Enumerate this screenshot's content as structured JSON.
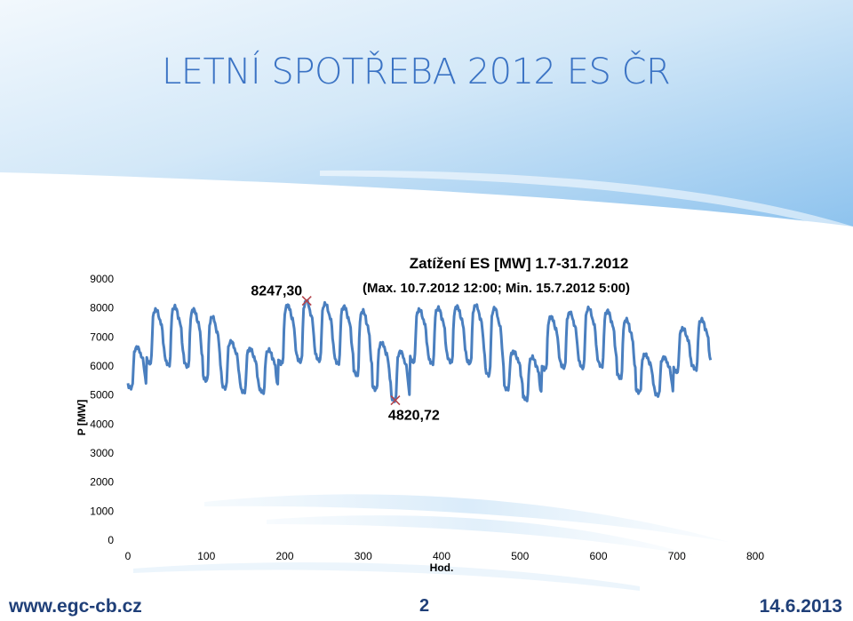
{
  "slide": {
    "title": "LETNÍ SPOTŘEBA 2012 ES ČR",
    "footer_left": "www.egc-cb.cz",
    "page_number": "2",
    "footer_right": "14.6.2013",
    "colors": {
      "header_gradient_start": "#e8f3fc",
      "header_gradient_end": "#8fc4ee",
      "title": "#3b73c4",
      "footer": "#1f3f78",
      "line": "#4a7fbf",
      "marker": "#b5434a"
    }
  },
  "chart_data": {
    "type": "line",
    "title": "Zatížení ES [MW] 1.7-31.7.2012",
    "subtitle": "(Max. 10.7.2012 12:00; Min. 15.7.2012 5:00)",
    "xlabel": "Hod.",
    "ylabel": "P [MW]",
    "xlim": [
      0,
      800
    ],
    "ylim": [
      0,
      9000
    ],
    "x_ticks": [
      0,
      100,
      200,
      300,
      400,
      500,
      600,
      700,
      800
    ],
    "y_ticks": [
      0,
      1000,
      2000,
      3000,
      4000,
      5000,
      6000,
      7000,
      8000,
      9000
    ],
    "grid": false,
    "legend": "none",
    "annotations": [
      {
        "label": "8247,30",
        "x": 228,
        "y": 8247.3
      },
      {
        "label": "4820,72",
        "x": 341,
        "y": 4820.72
      }
    ],
    "daily_profile": {
      "start_weekday": "Sunday",
      "hours": 744,
      "days": [
        {
          "min": 5250,
          "max": 6650
        },
        {
          "min": 6100,
          "max": 7950
        },
        {
          "min": 6050,
          "max": 8050
        },
        {
          "min": 6000,
          "max": 7950
        },
        {
          "min": 5500,
          "max": 7700
        },
        {
          "min": 5250,
          "max": 6850
        },
        {
          "min": 5100,
          "max": 6600
        },
        {
          "min": 5100,
          "max": 6550
        },
        {
          "min": 6100,
          "max": 8100
        },
        {
          "min": 6150,
          "max": 8247.3
        },
        {
          "min": 6200,
          "max": 8150
        },
        {
          "min": 6100,
          "max": 8050
        },
        {
          "min": 5700,
          "max": 7900
        },
        {
          "min": 5200,
          "max": 6800
        },
        {
          "min": 4820.72,
          "max": 6500
        },
        {
          "min": 6150,
          "max": 7950
        },
        {
          "min": 6100,
          "max": 8000
        },
        {
          "min": 6150,
          "max": 8050
        },
        {
          "min": 6100,
          "max": 8100
        },
        {
          "min": 5700,
          "max": 8000
        },
        {
          "min": 5200,
          "max": 6500
        },
        {
          "min": 4850,
          "max": 6300
        },
        {
          "min": 5900,
          "max": 7700
        },
        {
          "min": 5950,
          "max": 7850
        },
        {
          "min": 5950,
          "max": 8000
        },
        {
          "min": 6000,
          "max": 7900
        },
        {
          "min": 5600,
          "max": 7600
        },
        {
          "min": 5100,
          "max": 6400
        },
        {
          "min": 5000,
          "max": 6300
        },
        {
          "min": 5800,
          "max": 7300
        },
        {
          "min": 5900,
          "max": 7600
        }
      ]
    }
  }
}
